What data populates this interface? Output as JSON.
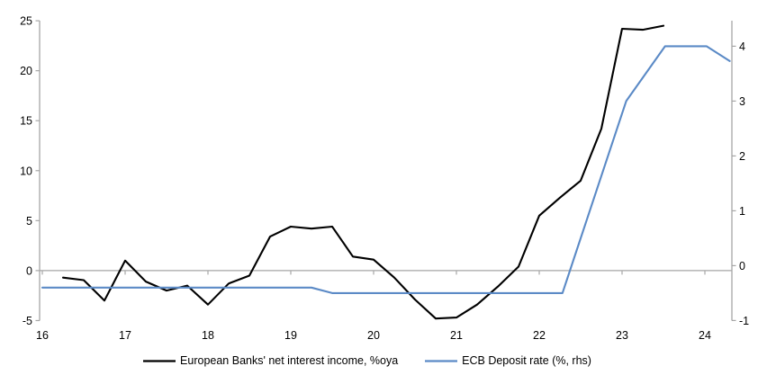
{
  "chart_data": {
    "type": "line",
    "title": "",
    "x_axis": {
      "tick_labels": [
        "16",
        "17",
        "18",
        "19",
        "20",
        "21",
        "22",
        "23",
        "24"
      ],
      "tick_values": [
        16,
        17,
        18,
        19,
        20,
        21,
        22,
        23,
        24
      ],
      "min": 16,
      "max": 24.35
    },
    "y_left_axis": {
      "tick_labels": [
        "-5",
        "0",
        "5",
        "10",
        "15",
        "20",
        "25"
      ],
      "tick_values": [
        -5,
        0,
        5,
        10,
        15,
        20,
        25
      ],
      "min": -5,
      "max": 25
    },
    "y_right_axis": {
      "tick_labels": [
        "-1",
        "0",
        "1",
        "2",
        "3",
        "4"
      ],
      "tick_values": [
        -1,
        0,
        1,
        2,
        3,
        4
      ],
      "min": -1,
      "max": 4.47
    },
    "grid": "zero-line-only",
    "legend_position": "bottom",
    "series": [
      {
        "name": "European Banks' net interest income, %oya",
        "axis": "left",
        "color": "#000000",
        "points": [
          [
            16.25,
            -0.7
          ],
          [
            16.5,
            -0.95
          ],
          [
            16.75,
            -3.0
          ],
          [
            17.0,
            1.0
          ],
          [
            17.25,
            -1.1
          ],
          [
            17.5,
            -2.0
          ],
          [
            17.75,
            -1.5
          ],
          [
            18.0,
            -3.4
          ],
          [
            18.25,
            -1.3
          ],
          [
            18.5,
            -0.5
          ],
          [
            18.75,
            3.4
          ],
          [
            19.0,
            4.4
          ],
          [
            19.25,
            4.2
          ],
          [
            19.5,
            4.4
          ],
          [
            19.75,
            1.4
          ],
          [
            20.0,
            1.1
          ],
          [
            20.25,
            -0.7
          ],
          [
            20.5,
            -2.9
          ],
          [
            20.75,
            -4.8
          ],
          [
            21.0,
            -4.7
          ],
          [
            21.25,
            -3.4
          ],
          [
            21.5,
            -1.6
          ],
          [
            21.75,
            0.4
          ],
          [
            22.0,
            5.5
          ],
          [
            22.25,
            7.3
          ],
          [
            22.5,
            9.0
          ],
          [
            22.75,
            14.2
          ],
          [
            23.0,
            24.2
          ],
          [
            23.25,
            24.1
          ],
          [
            23.5,
            24.5
          ]
        ]
      },
      {
        "name": "ECB Deposit rate (%, rhs)",
        "axis": "right",
        "color": "#5b8ac6",
        "points": [
          [
            16.0,
            -0.4
          ],
          [
            19.25,
            -0.4
          ],
          [
            19.5,
            -0.5
          ],
          [
            22.28,
            -0.5
          ],
          [
            23.05,
            3.0
          ],
          [
            23.52,
            4.0
          ],
          [
            24.02,
            4.0
          ],
          [
            24.3,
            3.73
          ]
        ]
      }
    ]
  },
  "colors": {
    "axis": "#a6a6a6",
    "zero_line": "#a6a6a6",
    "background": "#ffffff",
    "text": "#000000"
  }
}
